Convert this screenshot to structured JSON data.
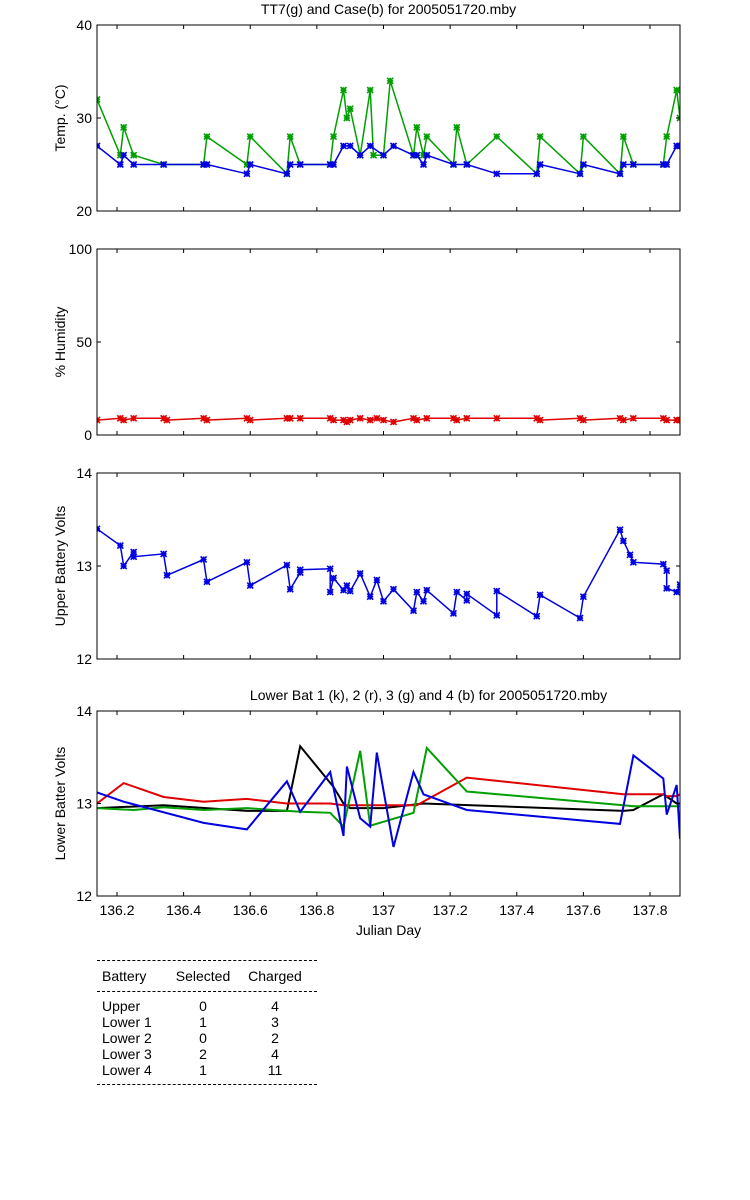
{
  "colors": {
    "green": "#00a000",
    "blue": "#0000e0",
    "red": "#e00000",
    "black": "#000000"
  },
  "chart_data": [
    {
      "type": "line",
      "title": "TT7(g) and Case(b) for 2005051720.mby",
      "xlabel": "",
      "ylabel": "Temp. (°C)",
      "xlim": [
        136.14,
        137.89
      ],
      "ylim": [
        20,
        40
      ],
      "yticks": [
        "20",
        "30",
        "40"
      ],
      "series": [
        {
          "name": "TT7",
          "color": "green",
          "markers": true,
          "x": [
            136.14,
            136.21,
            136.22,
            136.25,
            136.34,
            136.46,
            136.47,
            136.59,
            136.6,
            136.71,
            136.72,
            136.75,
            136.84,
            136.85,
            136.88,
            136.89,
            136.9,
            136.93,
            136.96,
            136.97,
            137.0,
            137.02,
            137.09,
            137.1,
            137.12,
            137.13,
            137.21,
            137.22,
            137.25,
            137.34,
            137.46,
            137.47,
            137.59,
            137.6,
            137.71,
            137.72,
            137.75,
            137.84,
            137.85,
            137.88,
            137.89
          ],
          "y": [
            32,
            26,
            29,
            26,
            25,
            25,
            28,
            25,
            28,
            24,
            28,
            25,
            25,
            28,
            33,
            30,
            31,
            26,
            33,
            26,
            26,
            34,
            26,
            29,
            26,
            28,
            25,
            29,
            25,
            28,
            24,
            28,
            24,
            28,
            24,
            28,
            25,
            25,
            28,
            33,
            30
          ]
        },
        {
          "name": "Case",
          "color": "blue",
          "markers": true,
          "x": [
            136.14,
            136.21,
            136.22,
            136.25,
            136.34,
            136.46,
            136.47,
            136.59,
            136.6,
            136.71,
            136.72,
            136.75,
            136.84,
            136.85,
            136.88,
            136.9,
            136.93,
            136.96,
            137.0,
            137.03,
            137.09,
            137.1,
            137.12,
            137.13,
            137.21,
            137.25,
            137.34,
            137.46,
            137.47,
            137.59,
            137.6,
            137.71,
            137.72,
            137.75,
            137.84,
            137.85,
            137.88,
            137.89
          ],
          "y": [
            27,
            25,
            26,
            25,
            25,
            25,
            25,
            24,
            25,
            24,
            25,
            25,
            25,
            25,
            27,
            27,
            26,
            27,
            26,
            27,
            26,
            26,
            25,
            26,
            25,
            25,
            24,
            24,
            25,
            24,
            25,
            24,
            25,
            25,
            25,
            25,
            27,
            27
          ]
        }
      ]
    },
    {
      "type": "line",
      "title": "",
      "xlabel": "",
      "ylabel": "% Humidity",
      "xlim": [
        136.14,
        137.89
      ],
      "ylim": [
        0,
        100
      ],
      "yticks": [
        "0",
        "50",
        "100"
      ],
      "series": [
        {
          "name": "",
          "color": "red",
          "markers": true,
          "x": [
            136.14,
            136.21,
            136.22,
            136.25,
            136.34,
            136.35,
            136.46,
            136.47,
            136.59,
            136.6,
            136.71,
            136.72,
            136.75,
            136.84,
            136.85,
            136.88,
            136.89,
            136.9,
            136.93,
            136.96,
            136.98,
            137.0,
            137.03,
            137.09,
            137.1,
            137.13,
            137.21,
            137.22,
            137.25,
            137.34,
            137.46,
            137.47,
            137.59,
            137.6,
            137.71,
            137.72,
            137.75,
            137.84,
            137.85,
            137.88,
            137.89
          ],
          "y": [
            8,
            9,
            8,
            9,
            9,
            8,
            9,
            8,
            9,
            8,
            9,
            9,
            9,
            9,
            8,
            8,
            7,
            8,
            9,
            8,
            9,
            8,
            7,
            9,
            8,
            9,
            9,
            8,
            9,
            9,
            9,
            8,
            9,
            8,
            9,
            8,
            9,
            9,
            8,
            8,
            8
          ]
        }
      ]
    },
    {
      "type": "line",
      "title": "",
      "xlabel": "",
      "ylabel": "Upper Battery Volts",
      "xlim": [
        136.14,
        137.89
      ],
      "ylim": [
        12,
        14
      ],
      "yticks": [
        "12",
        "13",
        "14"
      ],
      "series": [
        {
          "name": "",
          "color": "blue",
          "markers": true,
          "x": [
            136.14,
            136.21,
            136.22,
            136.25,
            136.25,
            136.34,
            136.35,
            136.46,
            136.47,
            136.59,
            136.6,
            136.71,
            136.72,
            136.75,
            136.75,
            136.84,
            136.84,
            136.85,
            136.88,
            136.89,
            136.9,
            136.93,
            136.96,
            136.98,
            137.0,
            137.03,
            137.09,
            137.1,
            137.12,
            137.13,
            137.21,
            137.22,
            137.25,
            137.25,
            137.34,
            137.34,
            137.46,
            137.47,
            137.59,
            137.6,
            137.71,
            137.72,
            137.74,
            137.75,
            137.84,
            137.85,
            137.85,
            137.88,
            137.89
          ],
          "y": [
            13.4,
            13.22,
            13.0,
            13.15,
            13.1,
            13.13,
            12.9,
            13.07,
            12.83,
            13.04,
            12.79,
            13.01,
            12.75,
            12.93,
            12.96,
            12.97,
            12.72,
            12.87,
            12.74,
            12.79,
            12.73,
            12.92,
            12.67,
            12.85,
            12.62,
            12.75,
            12.52,
            12.72,
            12.62,
            12.74,
            12.49,
            12.72,
            12.63,
            12.7,
            12.47,
            12.73,
            12.46,
            12.69,
            12.44,
            12.67,
            13.39,
            13.27,
            13.12,
            13.04,
            13.02,
            12.95,
            12.76,
            12.72,
            12.8
          ]
        }
      ]
    },
    {
      "type": "line",
      "title": "Lower Bat 1 (k), 2 (r), 3 (g) and 4 (b) for 2005051720.mby",
      "xlabel": "Julian Day",
      "ylabel": "Lower Batter Volts",
      "xlim": [
        136.14,
        137.89
      ],
      "ylim": [
        12,
        14
      ],
      "yticks": [
        "12",
        "13",
        "14"
      ],
      "xticks": [
        "136.2",
        "136.4",
        "136.6",
        "136.8",
        "137",
        "137.2",
        "137.4",
        "137.6",
        "137.8"
      ],
      "series": [
        {
          "name": "1",
          "color": "black",
          "markers": false,
          "x": [
            136.14,
            136.34,
            136.59,
            136.71,
            136.75,
            136.85,
            136.88,
            136.9,
            137.0,
            137.12,
            137.72,
            137.75,
            137.84,
            137.88,
            137.89
          ],
          "y": [
            12.95,
            12.98,
            12.92,
            12.92,
            13.62,
            13.18,
            13.0,
            12.95,
            12.95,
            13.0,
            12.92,
            12.93,
            13.1,
            13.0,
            13.0
          ]
        },
        {
          "name": "2",
          "color": "red",
          "markers": false,
          "x": [
            136.14,
            136.22,
            136.34,
            136.46,
            136.59,
            136.71,
            136.84,
            136.88,
            136.96,
            137.1,
            137.25,
            137.72,
            137.75,
            137.84,
            137.85,
            137.88,
            137.89
          ],
          "y": [
            13.0,
            13.22,
            13.07,
            13.02,
            13.05,
            13.0,
            13.0,
            12.98,
            12.98,
            12.98,
            13.28,
            13.1,
            13.1,
            13.1,
            13.08,
            13.08,
            13.1
          ]
        },
        {
          "name": "3",
          "color": "green",
          "markers": false,
          "x": [
            136.14,
            136.25,
            136.34,
            136.46,
            136.59,
            136.75,
            136.84,
            136.88,
            136.93,
            136.96,
            137.09,
            137.13,
            137.25,
            137.72,
            137.75,
            137.89
          ],
          "y": [
            12.95,
            12.93,
            12.96,
            12.93,
            12.95,
            12.91,
            12.9,
            12.75,
            13.57,
            12.76,
            12.9,
            13.6,
            13.13,
            12.98,
            12.97,
            12.97
          ]
        },
        {
          "name": "4",
          "color": "blue",
          "markers": false,
          "x": [
            136.14,
            136.22,
            136.46,
            136.59,
            136.71,
            136.75,
            136.84,
            136.88,
            136.89,
            136.93,
            136.96,
            136.98,
            137.03,
            137.09,
            137.12,
            137.25,
            137.71,
            137.75,
            137.84,
            137.85,
            137.88,
            137.89
          ],
          "y": [
            13.12,
            13.02,
            12.79,
            12.72,
            13.24,
            12.91,
            13.34,
            12.65,
            13.4,
            12.84,
            12.75,
            13.55,
            12.53,
            13.34,
            13.1,
            12.93,
            12.78,
            13.52,
            13.27,
            12.88,
            13.2,
            12.62
          ]
        }
      ]
    }
  ],
  "battery_table": {
    "headers": [
      "Battery",
      "Selected",
      "Charged"
    ],
    "rows": [
      [
        "Upper",
        "0",
        "4"
      ],
      [
        "Lower 1",
        "1",
        "3"
      ],
      [
        "Lower 2",
        "0",
        "2"
      ],
      [
        "Lower 3",
        "2",
        "4"
      ],
      [
        "Lower 4",
        "1",
        "11"
      ]
    ]
  }
}
